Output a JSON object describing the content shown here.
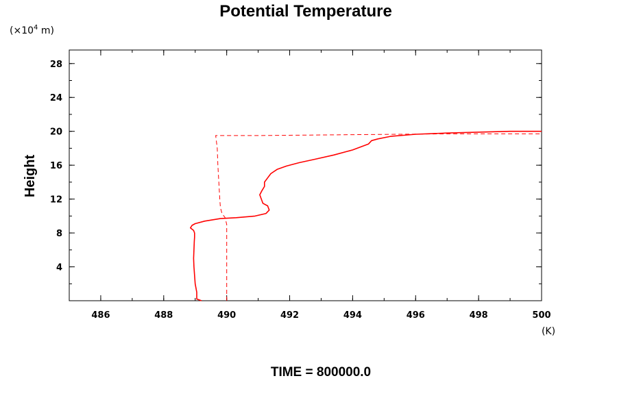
{
  "chart_data": {
    "type": "line",
    "title": "Potential Temperature",
    "xlabel": "",
    "ylabel": "Height",
    "x_unit": "(K)",
    "y_unit_prefix": "(×10",
    "y_unit_exp": "4",
    "y_unit_suffix": " m)",
    "xlim": [
      485,
      500
    ],
    "ylim": [
      0,
      29.6
    ],
    "x_ticks": [
      486,
      488,
      490,
      492,
      494,
      496,
      498,
      500
    ],
    "y_ticks": [
      4,
      8,
      12,
      16,
      20,
      24,
      28
    ],
    "grid": false,
    "series": [
      {
        "style": "solid",
        "color": "#ff0000",
        "points": [
          [
            489.2,
            0.0
          ],
          [
            489.05,
            0.2
          ],
          [
            489.05,
            1.0
          ],
          [
            489.0,
            2.0
          ],
          [
            488.98,
            3.0
          ],
          [
            488.96,
            4.0
          ],
          [
            488.95,
            5.0
          ],
          [
            488.96,
            6.0
          ],
          [
            488.97,
            7.0
          ],
          [
            488.98,
            7.5
          ],
          [
            488.98,
            8.0
          ],
          [
            488.95,
            8.3
          ],
          [
            488.85,
            8.6
          ],
          [
            488.9,
            8.9
          ],
          [
            489.0,
            9.1
          ],
          [
            489.3,
            9.4
          ],
          [
            489.8,
            9.7
          ],
          [
            490.3,
            9.8
          ],
          [
            490.9,
            10.0
          ],
          [
            491.25,
            10.3
          ],
          [
            491.35,
            10.7
          ],
          [
            491.3,
            11.2
          ],
          [
            491.15,
            11.5
          ],
          [
            491.1,
            12.0
          ],
          [
            491.05,
            12.5
          ],
          [
            491.12,
            13.0
          ],
          [
            491.2,
            13.5
          ],
          [
            491.2,
            14.0
          ],
          [
            491.3,
            14.5
          ],
          [
            491.4,
            15.0
          ],
          [
            491.6,
            15.5
          ],
          [
            491.9,
            15.9
          ],
          [
            492.3,
            16.3
          ],
          [
            492.8,
            16.7
          ],
          [
            493.4,
            17.2
          ],
          [
            494.0,
            17.8
          ],
          [
            494.5,
            18.5
          ],
          [
            494.6,
            18.9
          ],
          [
            494.8,
            19.1
          ],
          [
            495.2,
            19.4
          ],
          [
            496.0,
            19.65
          ],
          [
            497.0,
            19.8
          ],
          [
            498.0,
            19.9
          ],
          [
            499.0,
            20.0
          ],
          [
            500.0,
            20.0
          ]
        ]
      },
      {
        "style": "dashed",
        "color": "#ff0000",
        "points": [
          [
            490.0,
            0.0
          ],
          [
            490.0,
            9.0
          ],
          [
            489.95,
            9.8
          ],
          [
            489.85,
            10.3
          ],
          [
            489.8,
            11.0
          ],
          [
            489.78,
            12.0
          ],
          [
            489.75,
            14.0
          ],
          [
            489.72,
            16.0
          ],
          [
            489.7,
            18.0
          ],
          [
            489.65,
            19.5
          ],
          [
            491.0,
            19.5
          ],
          [
            494.0,
            19.6
          ],
          [
            497.0,
            19.7
          ],
          [
            500.0,
            19.7
          ]
        ]
      }
    ]
  },
  "footer": {
    "label": "TIME = 800000.0"
  }
}
